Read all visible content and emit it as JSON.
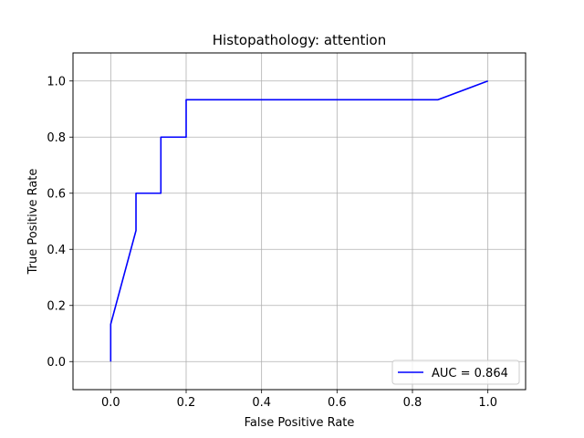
{
  "chart_data": {
    "type": "line",
    "title": "Histopathology: attention",
    "xlabel": "False Positive Rate",
    "ylabel": "True Positive Rate",
    "xlim": [
      -0.1,
      1.1
    ],
    "ylim": [
      -0.1,
      1.1
    ],
    "xticks": [
      0.0,
      0.2,
      0.4,
      0.6,
      0.8,
      1.0
    ],
    "xtick_labels": [
      "0.0",
      "0.2",
      "0.4",
      "0.6",
      "0.8",
      "1.0"
    ],
    "yticks": [
      0.0,
      0.2,
      0.4,
      0.6,
      0.8,
      1.0
    ],
    "ytick_labels": [
      "0.0",
      "0.2",
      "0.4",
      "0.6",
      "0.8",
      "1.0"
    ],
    "grid": true,
    "legend_position": "lower-right",
    "series": [
      {
        "name": "AUC = 0.864",
        "color": "#0000ff",
        "x": [
          0.0,
          0.0,
          0.067,
          0.067,
          0.133,
          0.133,
          0.2,
          0.2,
          0.867,
          1.0
        ],
        "y": [
          0.0,
          0.133,
          0.467,
          0.6,
          0.6,
          0.8,
          0.8,
          0.933,
          0.933,
          1.0
        ]
      }
    ]
  }
}
